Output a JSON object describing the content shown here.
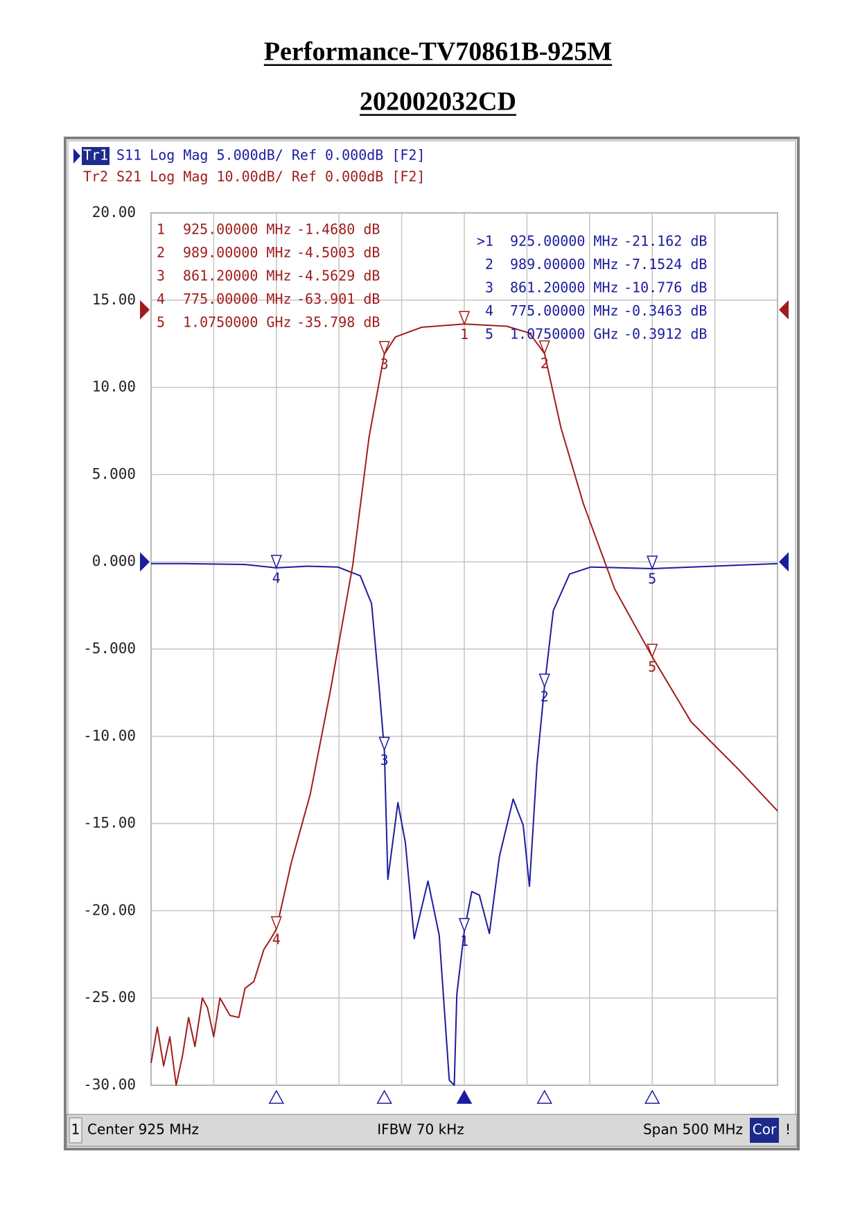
{
  "title": "Performance-TV70861B-925M",
  "subtitle": "202002032CD",
  "chart_data": {
    "type": "line",
    "xlim": [
      675,
      1175
    ],
    "xticks": [
      675,
      725,
      775,
      825,
      875,
      925,
      975,
      1025,
      1075,
      1125,
      1175
    ],
    "ylim": [
      -30,
      20
    ],
    "yticks": [
      {
        "value": 20,
        "label": "20.00"
      },
      {
        "value": 15,
        "label": "15.00"
      },
      {
        "value": 10,
        "label": "10.00"
      },
      {
        "value": 5,
        "label": "5.000"
      },
      {
        "value": 0,
        "label": "0.000"
      },
      {
        "value": -5,
        "label": "-5.000"
      },
      {
        "value": -10,
        "label": "-10.00"
      },
      {
        "value": -15,
        "label": "-15.00"
      },
      {
        "value": -20,
        "label": "-20.00"
      },
      {
        "value": -25,
        "label": "-25.00"
      },
      {
        "value": -30,
        "label": "-30.00"
      }
    ],
    "y2lim": [
      -80,
      10
    ],
    "grid": true,
    "series": [
      {
        "name": "Tr1",
        "label": "S11 Log Mag 5.000dB/ Ref 0.000dB [F2]",
        "color": "#1c1c9e",
        "active_prefix": ">",
        "x": [
          675,
          700,
          750,
          775,
          800,
          824,
          842,
          851,
          857,
          861.2,
          864,
          872,
          878,
          885,
          896,
          905,
          913,
          917,
          919,
          925,
          931,
          937,
          945,
          953,
          964,
          972,
          977,
          983,
          989,
          996,
          1009,
          1026,
          1075,
          1175
        ],
        "values": [
          -0.1,
          -0.1,
          -0.15,
          -0.3463,
          -0.25,
          -0.3,
          -0.8,
          -2.4,
          -7.2,
          -10.776,
          -18.2,
          -13.8,
          -16.1,
          -21.6,
          -18.3,
          -21.4,
          -29.7,
          -30,
          -24.8,
          -21.162,
          -18.9,
          -19.1,
          -21.3,
          -16.9,
          -13.6,
          -15.1,
          -18.6,
          -11.6,
          -7.1524,
          -2.8,
          -0.7,
          -0.3,
          -0.3912,
          -0.1
        ],
        "markers": [
          {
            "name": "1",
            "x": 925,
            "x_label": "925.00000 MHz",
            "value": -21.162,
            "value_label": "-21.162 dB"
          },
          {
            "name": "2",
            "x": 989,
            "x_label": "989.00000 MHz",
            "value": -7.1524,
            "value_label": "-7.1524 dB"
          },
          {
            "name": "3",
            "x": 861.2,
            "x_label": "861.20000 MHz",
            "value": -10.776,
            "value_label": "-10.776 dB"
          },
          {
            "name": "4",
            "x": 775,
            "x_label": "775.00000 MHz",
            "value": -0.3463,
            "value_label": "-0.3463 dB"
          },
          {
            "name": "5",
            "x": 1075,
            "x_label": "1.0750000 GHz",
            "value": -0.3912,
            "value_label": "-0.3912 dB"
          }
        ]
      },
      {
        "name": "Tr2",
        "label": "S21 Log Mag 10.00dB/ Ref 0.000dB [F2]",
        "color": "#a01c1c",
        "axis": "y2",
        "x": [
          675,
          680,
          685,
          690,
          695,
          700,
          705,
          710,
          716,
          720,
          725,
          730,
          738,
          745,
          750,
          757,
          765,
          770,
          775,
          787,
          802,
          818,
          836,
          849,
          861.2,
          870,
          891,
          925,
          959,
          977,
          989,
          1002,
          1020,
          1045,
          1075,
          1106,
          1143,
          1175
        ],
        "values": [
          -77.7,
          -74,
          -78,
          -75,
          -80,
          -77,
          -73,
          -76,
          -71,
          -72,
          -75,
          -71,
          -72.8,
          -73,
          -70,
          -69.3,
          -66,
          -65,
          -63.901,
          -57,
          -50,
          -39.4,
          -26.3,
          -13.1,
          -4.5629,
          -2.8,
          -1.8,
          -1.468,
          -1.7,
          -2.4,
          -4.5003,
          -12.1,
          -20,
          -28.8,
          -35.798,
          -42.5,
          -47.3,
          -51.7
        ],
        "markers": [
          {
            "name": "1",
            "x": 925,
            "x_label": "925.00000 MHz",
            "value": -1.468,
            "value_label": "-1.4680 dB"
          },
          {
            "name": "2",
            "x": 989,
            "x_label": "989.00000 MHz",
            "value": -4.5003,
            "value_label": "-4.5003 dB"
          },
          {
            "name": "3",
            "x": 861.2,
            "x_label": "861.20000 MHz",
            "value": -4.5629,
            "value_label": "-4.5629 dB"
          },
          {
            "name": "4",
            "x": 775,
            "x_label": "775.00000 MHz",
            "value": -63.901,
            "value_label": "-63.901 dB"
          },
          {
            "name": "5",
            "x": 1075,
            "x_label": "1.0750000 GHz",
            "value": -35.798,
            "value_label": "-35.798 dB"
          }
        ]
      }
    ]
  },
  "status_bar": {
    "channel": "1",
    "center": "Center 925 MHz",
    "ifbw": "IFBW 70 kHz",
    "span": "Span 500 MHz",
    "correction": "Cor",
    "alert": "!"
  }
}
